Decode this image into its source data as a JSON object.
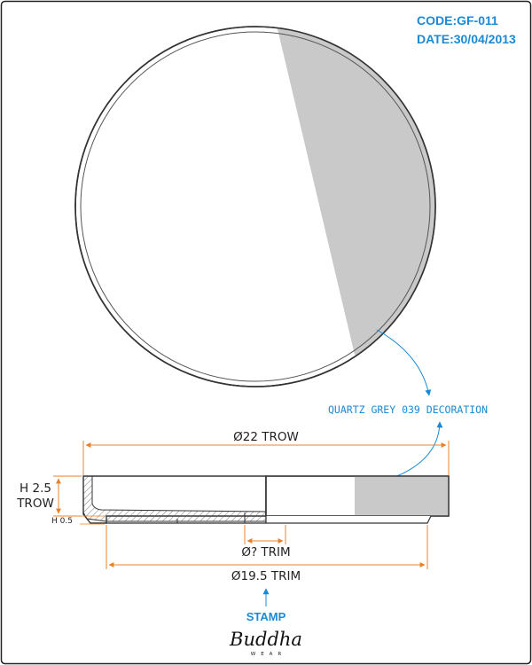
{
  "header": {
    "code": "CODE:GF-011",
    "date": "DATE:30/04/2013"
  },
  "callout": {
    "decoration": "QUARTZ GREY 039 DECORATION"
  },
  "dimensions": {
    "overall_diameter": "Ø22 TROW",
    "height_label_line1": "H 2.5",
    "height_label_line2": "TROW",
    "base_height": "H 0.5",
    "inner_trim_diameter": "Ø? TRIM",
    "base_trim_diameter": "Ø19.5 TRIM"
  },
  "stamp": {
    "label": "STAMP",
    "brand": "Buddha",
    "brand_sub": "WEAR"
  },
  "colors": {
    "accent": "#1a8ad4",
    "dimension": "#e8822a",
    "decoration_fill": "#c9c9c9",
    "outline": "#333333"
  }
}
